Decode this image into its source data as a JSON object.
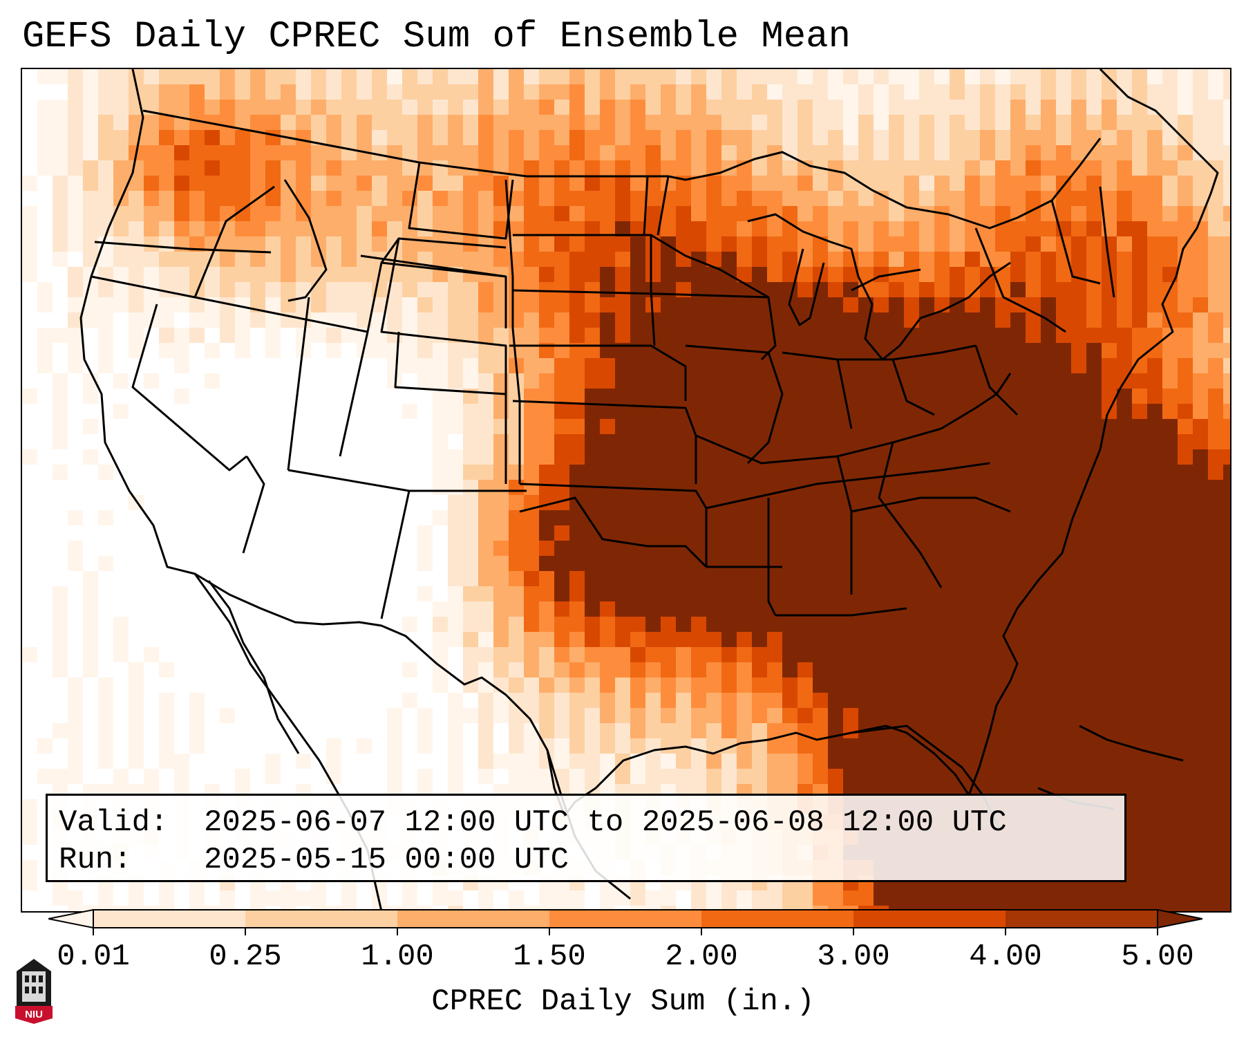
{
  "title": "GEFS Daily CPREC Sum of Ensemble Mean",
  "info": {
    "valid_key": "Valid:",
    "valid_value": "2025-06-07 12:00 UTC to 2025-06-08 12:00 UTC",
    "run_key": "Run:",
    "run_value": "2025-05-15 00:00 UTC"
  },
  "colorbar": {
    "label": "CPREC Daily Sum (in.)",
    "ticks": [
      "0.01",
      "0.25",
      "1.00",
      "1.50",
      "2.00",
      "3.00",
      "4.00",
      "5.00"
    ],
    "colors": [
      "#fff5eb",
      "#fee6ce",
      "#fdd0a2",
      "#fdae6b",
      "#fd8d3c",
      "#f16913",
      "#d94801",
      "#a63603",
      "#7f2704"
    ],
    "extend": "both"
  },
  "logo": {
    "text": "NIU",
    "color": "#c8102e"
  },
  "map": {
    "region": "Continental United States",
    "colors": {
      "none": "#ffffff",
      "lowest": "#fff5eb",
      "low": "#fee6ce",
      "light": "#fdd0a2",
      "moderate": "#fdae6b",
      "elevated": "#fd8d3c",
      "high": "#f16913",
      "higher": "#d94801",
      "highest": "#7f2704"
    }
  }
}
